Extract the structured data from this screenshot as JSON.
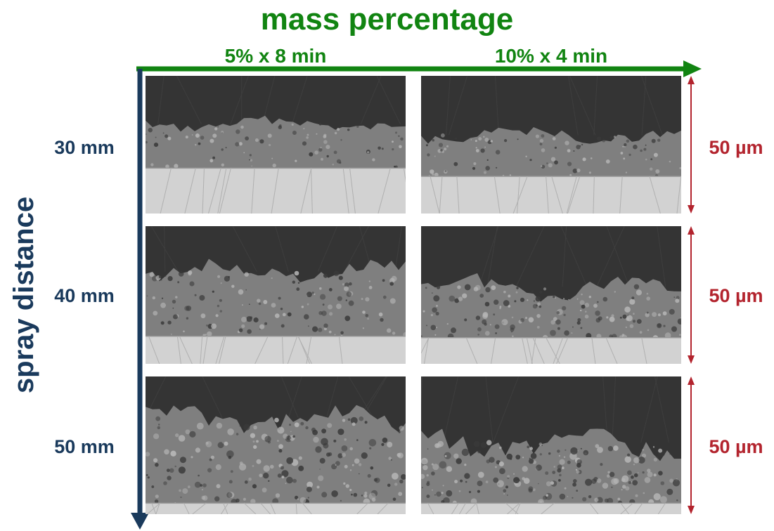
{
  "header": {
    "title": "mass percentage",
    "columns": [
      "5% x 8 min",
      "10% x 4 min"
    ]
  },
  "y_axis": {
    "title": "spray distance",
    "rows": [
      "30 mm",
      "40 mm",
      "50 mm"
    ]
  },
  "scale_bars": [
    "50 µm",
    "50 µm",
    "50 µm"
  ],
  "colors": {
    "x_axis": "#118411",
    "y_axis": "#1a3a5c",
    "scale": "#b3242e",
    "substrate": "#d2d2d2",
    "coating": "#7f7f7f",
    "resin": "#343434"
  },
  "panels": [
    {
      "coating_top": 0.35,
      "substrate_top": 0.67,
      "roughness": 0.3
    },
    {
      "coating_top": 0.43,
      "substrate_top": 0.73,
      "roughness": 0.35
    },
    {
      "coating_top": 0.33,
      "substrate_top": 0.8,
      "roughness": 0.6
    },
    {
      "coating_top": 0.44,
      "substrate_top": 0.81,
      "roughness": 0.75
    },
    {
      "coating_top": 0.3,
      "substrate_top": 0.92,
      "roughness": 1.0
    },
    {
      "coating_top": 0.48,
      "substrate_top": 0.92,
      "roughness": 1.0
    }
  ]
}
